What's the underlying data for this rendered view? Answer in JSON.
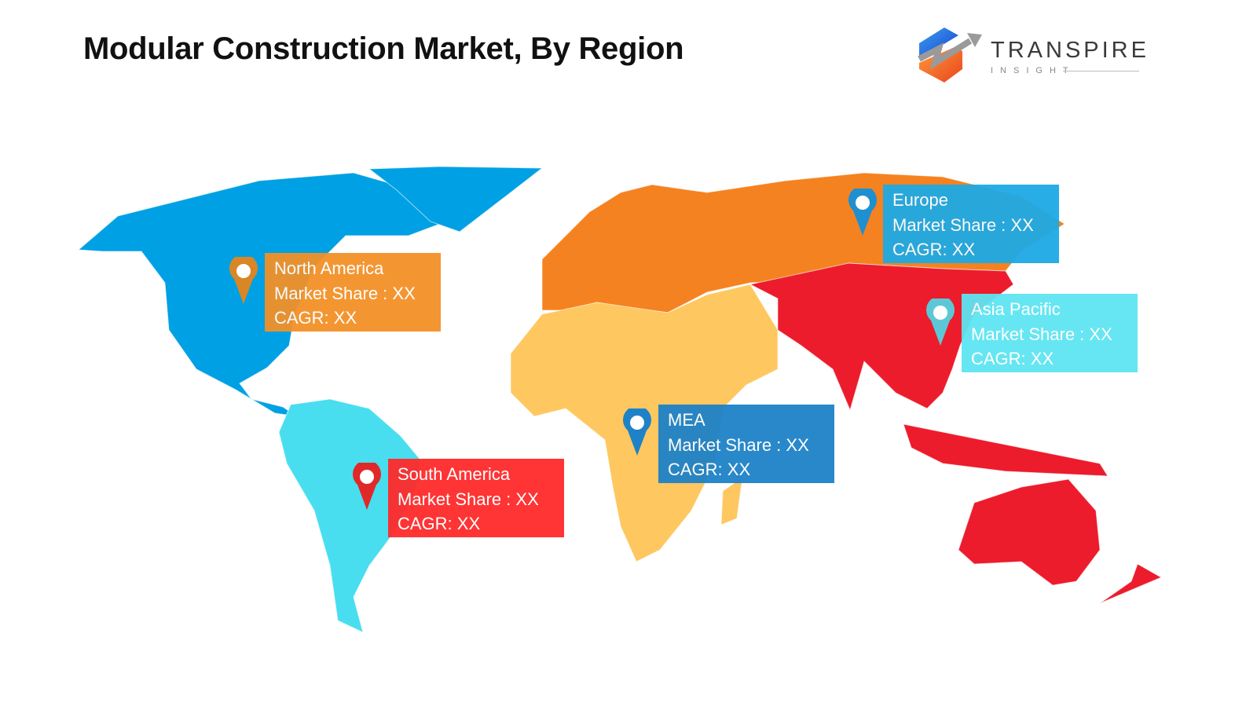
{
  "title": "Modular Construction Market, By Region",
  "logo": {
    "name": "TRANSPIRE",
    "tagline": "INSIGHT"
  },
  "colors": {
    "north_america_land": "#00a0e4",
    "south_america_land": "#48def0",
    "europe_land": "#f58220",
    "mea_land": "#fec760",
    "asia_pacific_land": "#ec1c2c"
  },
  "regions": [
    {
      "name": "North America",
      "market_share": "Market Share : XX",
      "cagr": "CAGR: XX",
      "box_color": "#f39128",
      "pin_color": "#d98626",
      "pin_icon": "map-pin-icon"
    },
    {
      "name": "Europe",
      "market_share": "Market Share : XX",
      "cagr": "CAGR: XX",
      "box_color": "#1ea9e6",
      "pin_color": "#1e8fd0",
      "pin_icon": "map-pin-icon"
    },
    {
      "name": "Asia Pacific",
      "market_share": "Market Share : XX",
      "cagr": "CAGR: XX",
      "box_color": "#5ee5f2",
      "pin_color": "#5cc8d6",
      "pin_icon": "map-pin-icon"
    },
    {
      "name": "MEA",
      "market_share": "Market Share : XX",
      "cagr": "CAGR: XX",
      "box_color": "#1e82c8",
      "pin_color": "#1e82c8",
      "pin_icon": "map-pin-icon"
    },
    {
      "name": "South America",
      "market_share": "Market Share : XX",
      "cagr": "CAGR: XX",
      "box_color": "#ff2a2a",
      "pin_color": "#e02828",
      "pin_icon": "map-pin-icon"
    }
  ]
}
